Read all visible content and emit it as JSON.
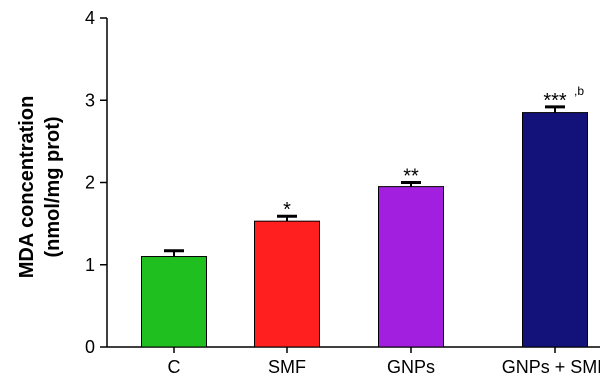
{
  "chart_data": {
    "type": "bar",
    "categories": [
      "C",
      "SMF",
      "GNPs",
      "GNPs + SMF"
    ],
    "values": [
      1.1,
      1.53,
      1.95,
      2.85
    ],
    "errors": [
      0.07,
      0.06,
      0.05,
      0.07
    ],
    "colors": [
      "#1fbf1f",
      "#ff1f1f",
      "#a21fe0",
      "#12127a"
    ],
    "annotations": [
      {
        "text": "",
        "sup": ""
      },
      {
        "text": "*",
        "sup": ""
      },
      {
        "text": "**",
        "sup": ""
      },
      {
        "text": "***",
        "sup": "b"
      }
    ],
    "title": "",
    "xlabel": "",
    "ylabel_lines": [
      "MDA concentration",
      "(nmol/mg prot)"
    ],
    "ylim": [
      0,
      4
    ],
    "yticks": [
      "0",
      "1",
      "2",
      "3",
      "4"
    ],
    "grid": false
  }
}
